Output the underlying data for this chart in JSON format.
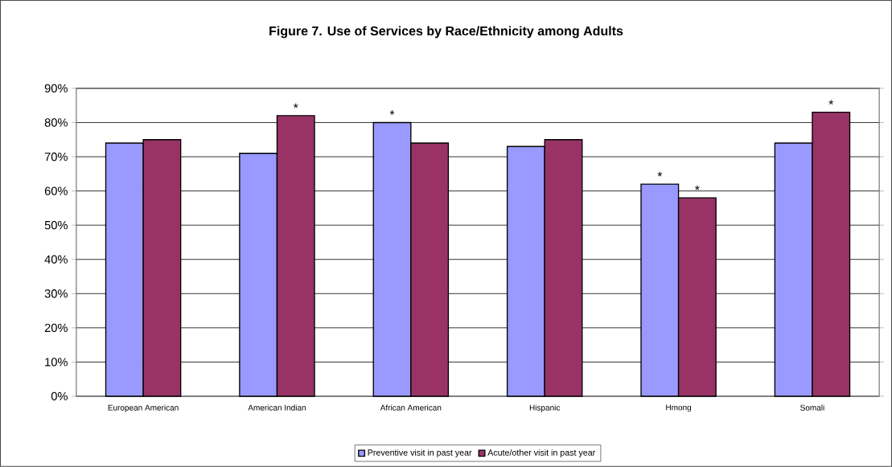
{
  "chart_data": {
    "type": "bar",
    "title": "Figure 7. Use of Services by Race/Ethnicity among Adults",
    "categories": [
      "European American",
      "American Indian",
      "African American",
      "Hispanic",
      "Hmong",
      "Somali"
    ],
    "series": [
      {
        "name": "Preventive visit in past year",
        "color": "#9999ff",
        "values": [
          74,
          71,
          80,
          73,
          62,
          74
        ],
        "value_labels": [
          null,
          null,
          "*",
          null,
          "*",
          null
        ]
      },
      {
        "name": "Acute/other visit in past year",
        "color": "#993366",
        "values": [
          75,
          82,
          74,
          75,
          58,
          83
        ],
        "value_labels": [
          null,
          "*",
          null,
          null,
          "*",
          "*"
        ]
      }
    ],
    "ylim": [
      0,
      90
    ],
    "yticks": [
      {
        "value": 0,
        "label": "0%"
      },
      {
        "value": 10,
        "label": "10%"
      },
      {
        "value": 20,
        "label": "20%"
      },
      {
        "value": 30,
        "label": "30%"
      },
      {
        "value": 40,
        "label": "40%"
      },
      {
        "value": 50,
        "label": "50%"
      },
      {
        "value": 60,
        "label": "60%"
      },
      {
        "value": 70,
        "label": "70%"
      },
      {
        "value": 80,
        "label": "80%"
      },
      {
        "value": 90,
        "label": "90%"
      }
    ],
    "grid": "y",
    "legend": "bottom"
  }
}
